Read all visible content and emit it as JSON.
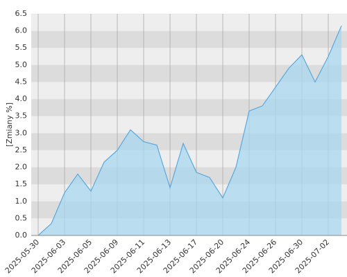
{
  "chart_data": {
    "type": "area",
    "y_label": "[Zmiany %]",
    "categories": [
      "2025-05-30",
      null,
      "2025-06-03",
      null,
      "2025-06-05",
      null,
      "2025-06-09",
      null,
      "2025-06-11",
      null,
      "2025-06-13",
      null,
      "2025-06-17",
      null,
      "2025-06-20",
      null,
      "2025-06-24",
      null,
      "2025-06-26",
      null,
      "2025-06-30",
      null,
      "2025-07-02",
      null
    ],
    "values": [
      0.0,
      0.35,
      1.25,
      1.8,
      1.3,
      2.15,
      2.5,
      3.1,
      2.75,
      2.65,
      1.4,
      2.7,
      1.85,
      1.7,
      1.1,
      2.0,
      3.65,
      3.8,
      4.35,
      4.9,
      5.3,
      4.5,
      5.25,
      6.15
    ],
    "color": "#5aa8e0",
    "fill": "#a8d8f0",
    "ylim": [
      0,
      6.5
    ],
    "yticks": [
      {
        "value": 0,
        "label": "0.0"
      },
      0.5,
      {
        "value": 1,
        "label": "1.0"
      },
      1.5,
      {
        "value": 2,
        "label": "2.0"
      },
      2.5,
      {
        "value": 3,
        "label": "3.0"
      },
      3.5,
      {
        "value": 4,
        "label": "4.0"
      },
      4.5,
      {
        "value": 5,
        "label": "5.0"
      },
      5.5,
      {
        "value": 6,
        "label": "6.0"
      },
      6.5
    ],
    "grid": true
  }
}
